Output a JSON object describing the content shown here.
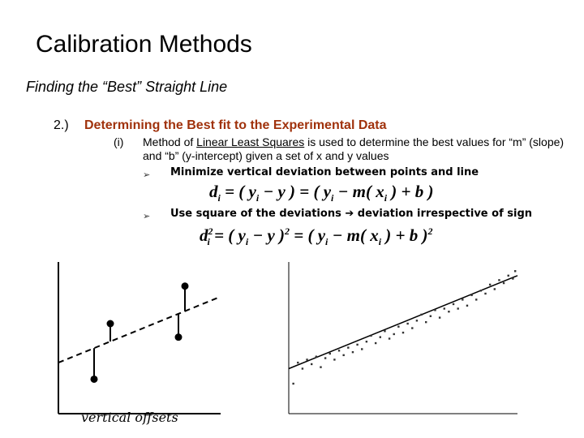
{
  "slide": {
    "title": "Calibration Methods",
    "subtitle": "Finding the “Best” Straight Line",
    "section_number": "2.)",
    "section_title": "Determining the Best fit to the Experimental Data",
    "item_number": "(i)",
    "item_text_before": "Method of ",
    "item_text_underlined": "Linear Least Squares",
    "item_text_after": " is used to determine the best values for “m” (slope) and “b” (y-intercept) given a set of x and y values",
    "bullet_marker": "➢",
    "bullets": [
      "Minimize vertical deviation between points and line",
      "Use square of the deviations",
      "deviation irrespective of sign"
    ],
    "arrow_icon": "right-arrow-icon",
    "equation_1": {
      "lhs": "d",
      "lhs_sub": "i",
      "body": [
        " = ( y",
        "i",
        " − y ) = ( y",
        "i",
        " − m( x",
        "i",
        " ) + b )"
      ]
    },
    "equation_2": {
      "lhs": "d",
      "lhs_sub": "i",
      "lhs_sup": "2",
      "body": [
        " = ( y",
        "i",
        " − y )",
        "2",
        " = ( y",
        "i",
        " − m( x",
        "i",
        " ) + b )",
        "2"
      ]
    },
    "left_figure_caption": "vertical offsets"
  },
  "chart_data": [
    {
      "type": "scatter",
      "description_role": "vertical-offsets",
      "title": "",
      "xlabel": "",
      "ylabel": "",
      "xlim": [
        0,
        10
      ],
      "ylim": [
        0,
        10
      ],
      "fit_line": {
        "style": "dashed",
        "x": [
          0,
          10
        ],
        "y": [
          3.4,
          7.8
        ]
      },
      "points": [
        {
          "x": 2.2,
          "y": 2.3
        },
        {
          "x": 3.2,
          "y": 6.0
        },
        {
          "x": 7.4,
          "y": 5.1
        },
        {
          "x": 7.8,
          "y": 8.5
        }
      ]
    },
    {
      "type": "scatter",
      "description_role": "linear-fit",
      "title": "",
      "xlabel": "",
      "ylabel": "",
      "xlim": [
        0,
        10
      ],
      "ylim": [
        0,
        10
      ],
      "grid": false,
      "fit_line": {
        "style": "solid",
        "x": [
          0,
          10
        ],
        "y": [
          3.0,
          9.2
        ]
      },
      "points": [
        {
          "x": 0.2,
          "y": 2.0
        },
        {
          "x": 0.4,
          "y": 3.4
        },
        {
          "x": 0.6,
          "y": 3.0
        },
        {
          "x": 0.8,
          "y": 3.6
        },
        {
          "x": 1.0,
          "y": 3.3
        },
        {
          "x": 1.2,
          "y": 3.8
        },
        {
          "x": 1.4,
          "y": 3.1
        },
        {
          "x": 1.6,
          "y": 3.7
        },
        {
          "x": 1.8,
          "y": 4.0
        },
        {
          "x": 2.0,
          "y": 3.6
        },
        {
          "x": 2.2,
          "y": 4.2
        },
        {
          "x": 2.4,
          "y": 3.9
        },
        {
          "x": 2.6,
          "y": 4.4
        },
        {
          "x": 2.8,
          "y": 4.1
        },
        {
          "x": 3.0,
          "y": 4.6
        },
        {
          "x": 3.2,
          "y": 4.3
        },
        {
          "x": 3.4,
          "y": 4.8
        },
        {
          "x": 3.6,
          "y": 5.2
        },
        {
          "x": 3.8,
          "y": 4.7
        },
        {
          "x": 4.0,
          "y": 5.1
        },
        {
          "x": 4.2,
          "y": 5.5
        },
        {
          "x": 4.4,
          "y": 5.0
        },
        {
          "x": 4.6,
          "y": 5.3
        },
        {
          "x": 4.8,
          "y": 5.8
        },
        {
          "x": 5.0,
          "y": 5.4
        },
        {
          "x": 5.2,
          "y": 6.0
        },
        {
          "x": 5.4,
          "y": 5.7
        },
        {
          "x": 5.6,
          "y": 6.2
        },
        {
          "x": 5.8,
          "y": 6.6
        },
        {
          "x": 6.0,
          "y": 6.1
        },
        {
          "x": 6.2,
          "y": 6.5
        },
        {
          "x": 6.4,
          "y": 6.9
        },
        {
          "x": 6.6,
          "y": 6.4
        },
        {
          "x": 6.8,
          "y": 7.0
        },
        {
          "x": 7.0,
          "y": 6.8
        },
        {
          "x": 7.2,
          "y": 7.3
        },
        {
          "x": 7.4,
          "y": 7.0
        },
        {
          "x": 7.6,
          "y": 7.6
        },
        {
          "x": 7.8,
          "y": 7.2
        },
        {
          "x": 8.0,
          "y": 7.9
        },
        {
          "x": 8.2,
          "y": 7.6
        },
        {
          "x": 8.4,
          "y": 8.2
        },
        {
          "x": 8.6,
          "y": 8.0
        },
        {
          "x": 8.8,
          "y": 8.6
        },
        {
          "x": 9.0,
          "y": 8.3
        },
        {
          "x": 9.2,
          "y": 8.9
        },
        {
          "x": 9.4,
          "y": 8.7
        },
        {
          "x": 9.6,
          "y": 9.2
        },
        {
          "x": 9.8,
          "y": 9.0
        },
        {
          "x": 9.9,
          "y": 9.5
        }
      ]
    }
  ]
}
